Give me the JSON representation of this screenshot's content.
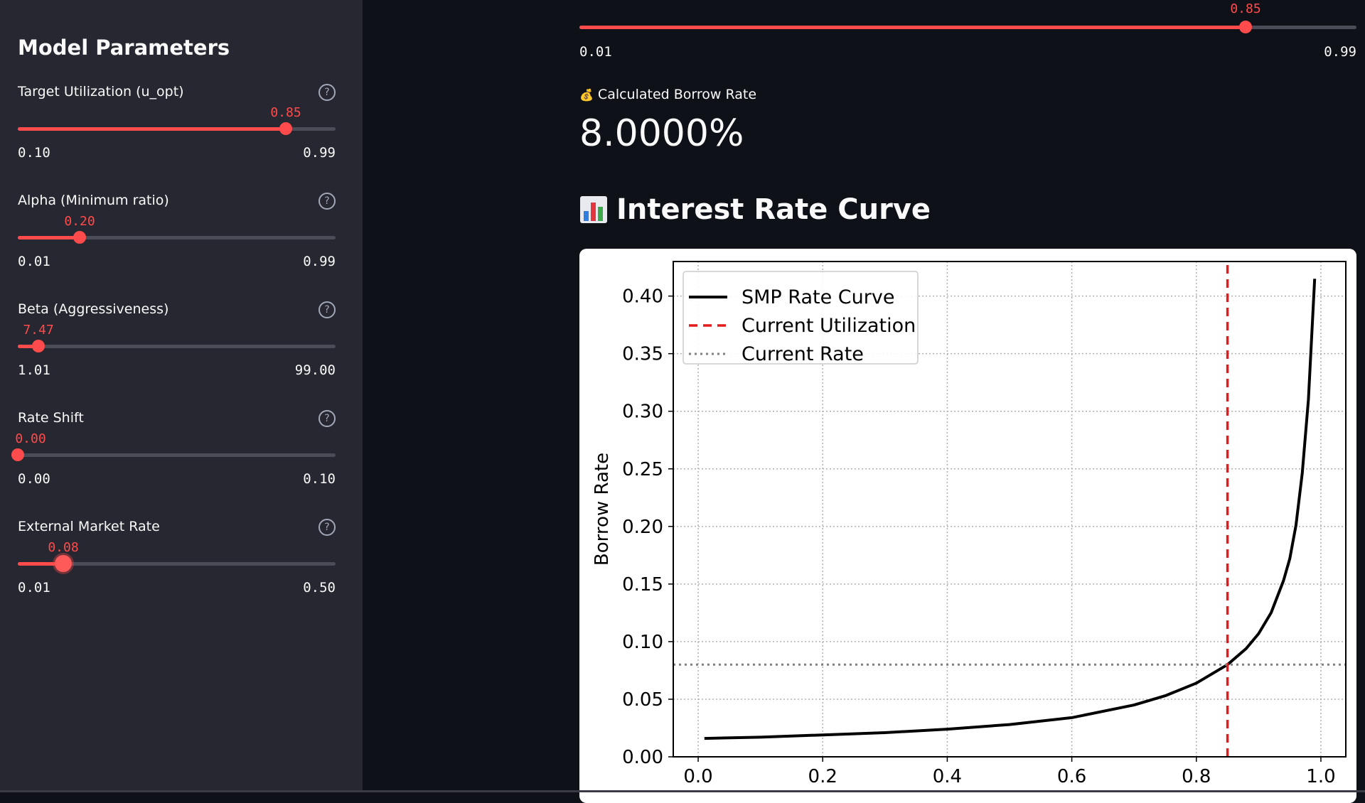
{
  "sidebar": {
    "title": "Model Parameters",
    "params": [
      {
        "label": "Target Utilization (u_opt)",
        "value": "0.85",
        "min": "0.10",
        "max": "0.99",
        "v": 0.85,
        "lo": 0.1,
        "hi": 0.99
      },
      {
        "label": "Alpha (Minimum ratio)",
        "value": "0.20",
        "min": "0.01",
        "max": "0.99",
        "v": 0.2,
        "lo": 0.01,
        "hi": 0.99
      },
      {
        "label": "Beta (Aggressiveness)",
        "value": "7.47",
        "min": "1.01",
        "max": "99.00",
        "v": 7.47,
        "lo": 1.01,
        "hi": 99.0
      },
      {
        "label": "Rate Shift",
        "value": "0.00",
        "min": "0.00",
        "max": "0.10",
        "v": 0.0,
        "lo": 0.0,
        "hi": 0.1
      },
      {
        "label": "External Market Rate",
        "value": "0.08",
        "min": "0.01",
        "max": "0.50",
        "v": 0.08,
        "lo": 0.01,
        "hi": 0.5
      }
    ],
    "help_glyph": "?"
  },
  "main": {
    "utilization_slider": {
      "value": "0.85",
      "min": "0.01",
      "max": "0.99",
      "v": 0.85,
      "lo": 0.01,
      "hi": 0.99
    },
    "metric_label": "Calculated Borrow Rate",
    "metric_icon": "money-bag-icon",
    "metric_icon_glyph": "💰",
    "metric_value": "8.0000%",
    "section_title": "Interest Rate Curve",
    "section_icon": "bar-chart-icon"
  },
  "colors": {
    "accent": "#ff4b4b",
    "sidebar_bg": "#262730",
    "app_bg": "#0e1117"
  },
  "chart_data": {
    "type": "line",
    "title": "",
    "xlabel": "",
    "ylabel": "Borrow Rate",
    "xlim": [
      -0.04,
      1.04
    ],
    "ylim": [
      0.0,
      0.43
    ],
    "x_ticks": [
      "0.0",
      "0.2",
      "0.4",
      "0.6",
      "0.8",
      "1.0"
    ],
    "y_ticks": [
      "0.00",
      "0.05",
      "0.10",
      "0.15",
      "0.20",
      "0.25",
      "0.30",
      "0.35",
      "0.40"
    ],
    "grid": true,
    "legend_placement": "top-left",
    "series": [
      {
        "name": "SMP Rate Curve",
        "color": "#000000",
        "style": "solid",
        "x": [
          0.01,
          0.1,
          0.2,
          0.3,
          0.4,
          0.5,
          0.6,
          0.7,
          0.75,
          0.8,
          0.85,
          0.88,
          0.9,
          0.92,
          0.94,
          0.95,
          0.96,
          0.97,
          0.98,
          0.99
        ],
        "y": [
          0.016,
          0.017,
          0.019,
          0.021,
          0.024,
          0.028,
          0.034,
          0.045,
          0.053,
          0.064,
          0.08,
          0.094,
          0.107,
          0.125,
          0.153,
          0.172,
          0.201,
          0.246,
          0.31,
          0.415
        ]
      },
      {
        "name": "Current Utilization",
        "color": "#e41a1c",
        "style": "dashed",
        "x": [
          0.85,
          0.85
        ],
        "y": [
          0.0,
          0.43
        ]
      },
      {
        "name": "Current Rate",
        "color": "#808080",
        "style": "dotted",
        "x": [
          -0.04,
          1.04
        ],
        "y": [
          0.08,
          0.08
        ]
      }
    ]
  }
}
